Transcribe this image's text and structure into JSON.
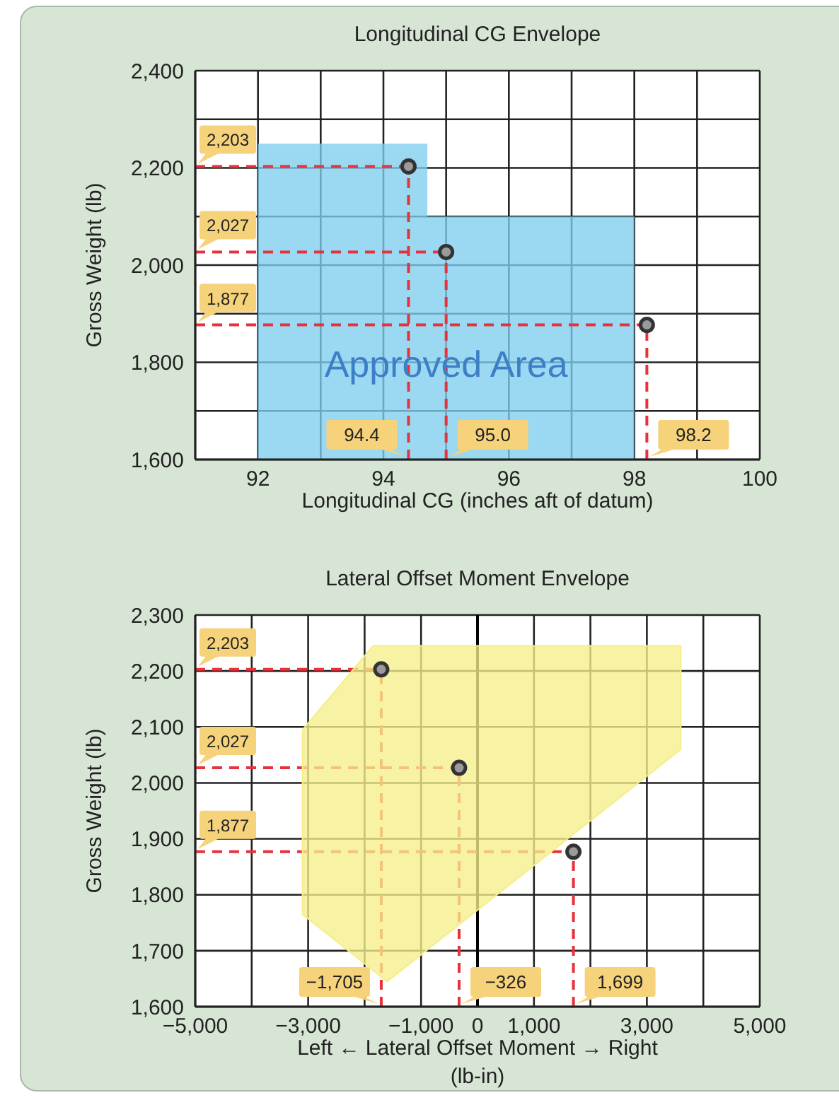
{
  "chart_data": [
    {
      "type": "scatter",
      "title": "Longitudinal CG Envelope",
      "xlabel": "Longitudinal CG (inches aft of datum)",
      "ylabel": "Gross Weight (lb)",
      "grid": true,
      "xlim": [
        91,
        100
      ],
      "xticks": [
        {
          "value": 91,
          "label": null
        },
        92,
        {
          "value": 93,
          "label": null
        },
        94,
        {
          "value": 95,
          "label": null
        },
        96,
        {
          "value": 97,
          "label": null
        },
        98,
        {
          "value": 99,
          "label": null
        },
        100
      ],
      "ylim": [
        1600,
        2400
      ],
      "yticks": [
        {
          "value": 1600,
          "label": "1,600"
        },
        {
          "value": 1700,
          "label": null
        },
        {
          "value": 1800,
          "label": "1,800"
        },
        {
          "value": 1900,
          "label": null
        },
        {
          "value": 2000,
          "label": "2,000"
        },
        {
          "value": 2100,
          "label": null
        },
        {
          "value": 2200,
          "label": "2,200"
        },
        {
          "value": 2300,
          "label": null
        },
        {
          "value": 2400,
          "label": "2,400"
        }
      ],
      "series": [
        {
          "type": "area",
          "name": "Approved Area",
          "color": "#7fcdee",
          "x": [
            92,
            94.7,
            94.7,
            98
          ],
          "values": [
            2250,
            2250,
            2100,
            2100
          ]
        },
        {
          "color": "#333333",
          "marker": "circle",
          "x": [
            94.4,
            95.0,
            98.2
          ],
          "values": [
            2203,
            2027,
            1877
          ]
        }
      ],
      "ref_lines": [
        {
          "axis": "y",
          "value": 2203,
          "label": "2,203",
          "color": "#e8313a",
          "line_style": "dashed"
        },
        {
          "axis": "y",
          "value": 2027,
          "label": "2,027",
          "color": "#e8313a",
          "line_style": "dashed"
        },
        {
          "axis": "y",
          "value": 1877,
          "label": "1,877",
          "color": "#e8313a",
          "line_style": "dashed"
        },
        {
          "axis": "x",
          "value": 94.4,
          "label": "94.4",
          "color": "#e8313a",
          "line_style": "dashed"
        },
        {
          "axis": "x",
          "value": 95.0,
          "label": "95.0",
          "color": "#e8313a",
          "line_style": "dashed"
        },
        {
          "axis": "x",
          "value": 98.2,
          "label": "98.2",
          "color": "#e8313a",
          "line_style": "dashed"
        }
      ]
    },
    {
      "type": "scatter",
      "title": "Lateral Offset Moment Envelope",
      "xlabel": "Left ← Lateral Offset Moment → Right\n(lb-in)",
      "ylabel": "Gross Weight (lb)",
      "grid": true,
      "xlim": [
        -5000,
        5000
      ],
      "xticks": [
        {
          "value": -5000,
          "label": "−5,000"
        },
        {
          "value": -4000,
          "label": null
        },
        {
          "value": -3000,
          "label": "−3,000"
        },
        {
          "value": -2000,
          "label": null
        },
        {
          "value": -1000,
          "label": "−1,000"
        },
        0,
        {
          "value": 1000,
          "label": "1,000"
        },
        {
          "value": 2000,
          "label": null
        },
        {
          "value": 3000,
          "label": "3,000"
        },
        {
          "value": 4000,
          "label": null
        },
        {
          "value": 5000,
          "label": "5,000"
        }
      ],
      "ylim": [
        1600,
        2300
      ],
      "yticks": [
        {
          "value": 1600,
          "label": "1,600"
        },
        {
          "value": 1700,
          "label": "1,700"
        },
        {
          "value": 1800,
          "label": "1,800"
        },
        {
          "value": 1900,
          "label": "1,900"
        },
        {
          "value": 2000,
          "label": "2,000"
        },
        {
          "value": 2100,
          "label": "2,100"
        },
        {
          "value": 2200,
          "label": "2,200"
        },
        {
          "value": 2300,
          "label": "2,300"
        }
      ],
      "series": [
        {
          "type": "area",
          "color": "#f5ee8a",
          "x": [
            -1850,
            3600,
            3600,
            -1600,
            -3100,
            -3100,
            -1850
          ],
          "values": [
            2245,
            2245,
            2060,
            1645,
            1765,
            2095,
            2245
          ]
        },
        {
          "color": "#333333",
          "marker": "circle",
          "x": [
            -1705,
            -326,
            1699
          ],
          "values": [
            2203,
            2027,
            1877
          ]
        }
      ],
      "ref_lines": [
        {
          "axis": "x",
          "value": 0,
          "color": "#000000",
          "line_style": "solid"
        },
        {
          "axis": "y",
          "value": 2203,
          "label": "2,203",
          "color": "#e8313a",
          "line_style": "dashed"
        },
        {
          "axis": "y",
          "value": 2027,
          "label": "2,027",
          "color": "#e8313a",
          "line_style": "dashed"
        },
        {
          "axis": "y",
          "value": 1877,
          "label": "1,877",
          "color": "#e8313a",
          "line_style": "dashed"
        },
        {
          "axis": "x",
          "value": -1705,
          "label": "−1,705",
          "color": "#e8313a",
          "line_style": "dashed"
        },
        {
          "axis": "x",
          "value": -326,
          "label": "−326",
          "color": "#e8313a",
          "line_style": "dashed"
        },
        {
          "axis": "x",
          "value": 1699,
          "label": "1,699",
          "color": "#e8313a",
          "line_style": "dashed"
        }
      ]
    }
  ]
}
